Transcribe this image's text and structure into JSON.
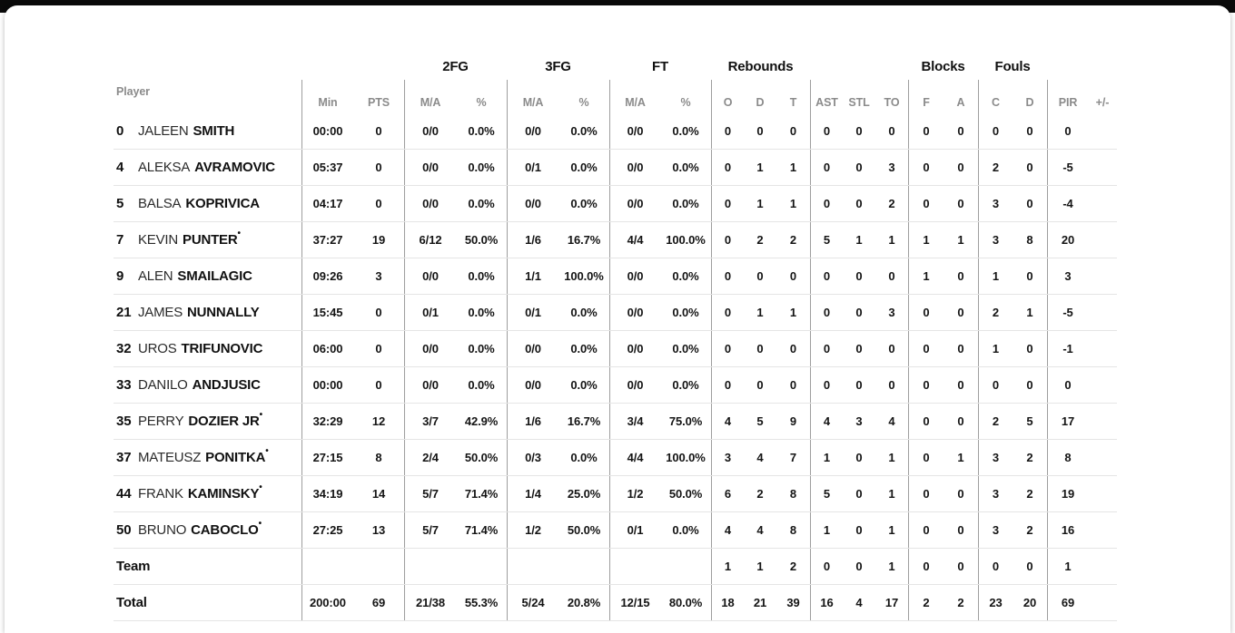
{
  "theme": {
    "top_bar": "#0a0a0a",
    "card_bg": "#ffffff",
    "vertical_divider": "#9e9e9e",
    "row_divider": "#e5e5e5",
    "label_gray": "#8b8b8b",
    "text_dark": "#141414"
  },
  "table": {
    "headers": {
      "player": "Player",
      "min": "Min",
      "pts": "PTS",
      "ma": "M/A",
      "pct": "%",
      "fg2": "2FG",
      "fg3": "3FG",
      "ft": "FT",
      "rebounds": "Rebounds",
      "reb_o": "O",
      "reb_d": "D",
      "reb_t": "T",
      "ast": "AST",
      "stl": "STL",
      "to": "TO",
      "blocks": "Blocks",
      "blk_f": "F",
      "blk_a": "A",
      "fouls": "Fouls",
      "foul_c": "C",
      "foul_d": "D",
      "pir": "PIR",
      "plus_minus": "+/-"
    },
    "starter_mark": "•",
    "rows": [
      {
        "number": "0",
        "first": "JALEEN",
        "last": "SMITH",
        "starter": false,
        "min": "00:00",
        "pts": "0",
        "fg2_ma": "0/0",
        "fg2_pct": "0.0%",
        "fg3_ma": "0/0",
        "fg3_pct": "0.0%",
        "ft_ma": "0/0",
        "ft_pct": "0.0%",
        "reb_o": "0",
        "reb_d": "0",
        "reb_t": "0",
        "ast": "0",
        "stl": "0",
        "to": "0",
        "blk_f": "0",
        "blk_a": "0",
        "foul_c": "0",
        "foul_d": "0",
        "pir": "0"
      },
      {
        "number": "4",
        "first": "ALEKSA",
        "last": "AVRAMOVIC",
        "starter": false,
        "min": "05:37",
        "pts": "0",
        "fg2_ma": "0/0",
        "fg2_pct": "0.0%",
        "fg3_ma": "0/1",
        "fg3_pct": "0.0%",
        "ft_ma": "0/0",
        "ft_pct": "0.0%",
        "reb_o": "0",
        "reb_d": "1",
        "reb_t": "1",
        "ast": "0",
        "stl": "0",
        "to": "3",
        "blk_f": "0",
        "blk_a": "0",
        "foul_c": "2",
        "foul_d": "0",
        "pir": "-5"
      },
      {
        "number": "5",
        "first": "BALSA",
        "last": "KOPRIVICA",
        "starter": false,
        "min": "04:17",
        "pts": "0",
        "fg2_ma": "0/0",
        "fg2_pct": "0.0%",
        "fg3_ma": "0/0",
        "fg3_pct": "0.0%",
        "ft_ma": "0/0",
        "ft_pct": "0.0%",
        "reb_o": "0",
        "reb_d": "1",
        "reb_t": "1",
        "ast": "0",
        "stl": "0",
        "to": "2",
        "blk_f": "0",
        "blk_a": "0",
        "foul_c": "3",
        "foul_d": "0",
        "pir": "-4"
      },
      {
        "number": "7",
        "first": "KEVIN",
        "last": "PUNTER",
        "starter": true,
        "min": "37:27",
        "pts": "19",
        "fg2_ma": "6/12",
        "fg2_pct": "50.0%",
        "fg3_ma": "1/6",
        "fg3_pct": "16.7%",
        "ft_ma": "4/4",
        "ft_pct": "100.0%",
        "reb_o": "0",
        "reb_d": "2",
        "reb_t": "2",
        "ast": "5",
        "stl": "1",
        "to": "1",
        "blk_f": "1",
        "blk_a": "1",
        "foul_c": "3",
        "foul_d": "8",
        "pir": "20"
      },
      {
        "number": "9",
        "first": "ALEN",
        "last": "SMAILAGIC",
        "starter": false,
        "min": "09:26",
        "pts": "3",
        "fg2_ma": "0/0",
        "fg2_pct": "0.0%",
        "fg3_ma": "1/1",
        "fg3_pct": "100.0%",
        "ft_ma": "0/0",
        "ft_pct": "0.0%",
        "reb_o": "0",
        "reb_d": "0",
        "reb_t": "0",
        "ast": "0",
        "stl": "0",
        "to": "0",
        "blk_f": "1",
        "blk_a": "0",
        "foul_c": "1",
        "foul_d": "0",
        "pir": "3"
      },
      {
        "number": "21",
        "first": "JAMES",
        "last": "NUNNALLY",
        "starter": false,
        "min": "15:45",
        "pts": "0",
        "fg2_ma": "0/1",
        "fg2_pct": "0.0%",
        "fg3_ma": "0/1",
        "fg3_pct": "0.0%",
        "ft_ma": "0/0",
        "ft_pct": "0.0%",
        "reb_o": "0",
        "reb_d": "1",
        "reb_t": "1",
        "ast": "0",
        "stl": "0",
        "to": "3",
        "blk_f": "0",
        "blk_a": "0",
        "foul_c": "2",
        "foul_d": "1",
        "pir": "-5"
      },
      {
        "number": "32",
        "first": "UROS",
        "last": "TRIFUNOVIC",
        "starter": false,
        "min": "06:00",
        "pts": "0",
        "fg2_ma": "0/0",
        "fg2_pct": "0.0%",
        "fg3_ma": "0/0",
        "fg3_pct": "0.0%",
        "ft_ma": "0/0",
        "ft_pct": "0.0%",
        "reb_o": "0",
        "reb_d": "0",
        "reb_t": "0",
        "ast": "0",
        "stl": "0",
        "to": "0",
        "blk_f": "0",
        "blk_a": "0",
        "foul_c": "1",
        "foul_d": "0",
        "pir": "-1"
      },
      {
        "number": "33",
        "first": "DANILO",
        "last": "ANDJUSIC",
        "starter": false,
        "min": "00:00",
        "pts": "0",
        "fg2_ma": "0/0",
        "fg2_pct": "0.0%",
        "fg3_ma": "0/0",
        "fg3_pct": "0.0%",
        "ft_ma": "0/0",
        "ft_pct": "0.0%",
        "reb_o": "0",
        "reb_d": "0",
        "reb_t": "0",
        "ast": "0",
        "stl": "0",
        "to": "0",
        "blk_f": "0",
        "blk_a": "0",
        "foul_c": "0",
        "foul_d": "0",
        "pir": "0"
      },
      {
        "number": "35",
        "first": "PERRY",
        "last": "DOZIER JR",
        "starter": true,
        "min": "32:29",
        "pts": "12",
        "fg2_ma": "3/7",
        "fg2_pct": "42.9%",
        "fg3_ma": "1/6",
        "fg3_pct": "16.7%",
        "ft_ma": "3/4",
        "ft_pct": "75.0%",
        "reb_o": "4",
        "reb_d": "5",
        "reb_t": "9",
        "ast": "4",
        "stl": "3",
        "to": "4",
        "blk_f": "0",
        "blk_a": "0",
        "foul_c": "2",
        "foul_d": "5",
        "pir": "17"
      },
      {
        "number": "37",
        "first": "MATEUSZ",
        "last": "PONITKA",
        "starter": true,
        "min": "27:15",
        "pts": "8",
        "fg2_ma": "2/4",
        "fg2_pct": "50.0%",
        "fg3_ma": "0/3",
        "fg3_pct": "0.0%",
        "ft_ma": "4/4",
        "ft_pct": "100.0%",
        "reb_o": "3",
        "reb_d": "4",
        "reb_t": "7",
        "ast": "1",
        "stl": "0",
        "to": "1",
        "blk_f": "0",
        "blk_a": "1",
        "foul_c": "3",
        "foul_d": "2",
        "pir": "8"
      },
      {
        "number": "44",
        "first": "FRANK",
        "last": "KAMINSKY",
        "starter": true,
        "min": "34:19",
        "pts": "14",
        "fg2_ma": "5/7",
        "fg2_pct": "71.4%",
        "fg3_ma": "1/4",
        "fg3_pct": "25.0%",
        "ft_ma": "1/2",
        "ft_pct": "50.0%",
        "reb_o": "6",
        "reb_d": "2",
        "reb_t": "8",
        "ast": "5",
        "stl": "0",
        "to": "1",
        "blk_f": "0",
        "blk_a": "0",
        "foul_c": "3",
        "foul_d": "2",
        "pir": "19"
      },
      {
        "number": "50",
        "first": "BRUNO",
        "last": "CABOCLO",
        "starter": true,
        "min": "27:25",
        "pts": "13",
        "fg2_ma": "5/7",
        "fg2_pct": "71.4%",
        "fg3_ma": "1/2",
        "fg3_pct": "50.0%",
        "ft_ma": "0/1",
        "ft_pct": "0.0%",
        "reb_o": "4",
        "reb_d": "4",
        "reb_t": "8",
        "ast": "1",
        "stl": "0",
        "to": "1",
        "blk_f": "0",
        "blk_a": "0",
        "foul_c": "3",
        "foul_d": "2",
        "pir": "16"
      }
    ],
    "team_row": {
      "label": "Team",
      "reb_o": "1",
      "reb_d": "1",
      "reb_t": "2",
      "ast": "0",
      "stl": "0",
      "to": "1",
      "blk_f": "0",
      "blk_a": "0",
      "foul_c": "0",
      "foul_d": "0",
      "pir": "1"
    },
    "total_row": {
      "label": "Total",
      "min": "200:00",
      "pts": "69",
      "fg2_ma": "21/38",
      "fg2_pct": "55.3%",
      "fg3_ma": "5/24",
      "fg3_pct": "20.8%",
      "ft_ma": "12/15",
      "ft_pct": "80.0%",
      "reb_o": "18",
      "reb_d": "21",
      "reb_t": "39",
      "ast": "16",
      "stl": "4",
      "to": "17",
      "blk_f": "2",
      "blk_a": "2",
      "foul_c": "23",
      "foul_d": "20",
      "pir": "69"
    }
  }
}
